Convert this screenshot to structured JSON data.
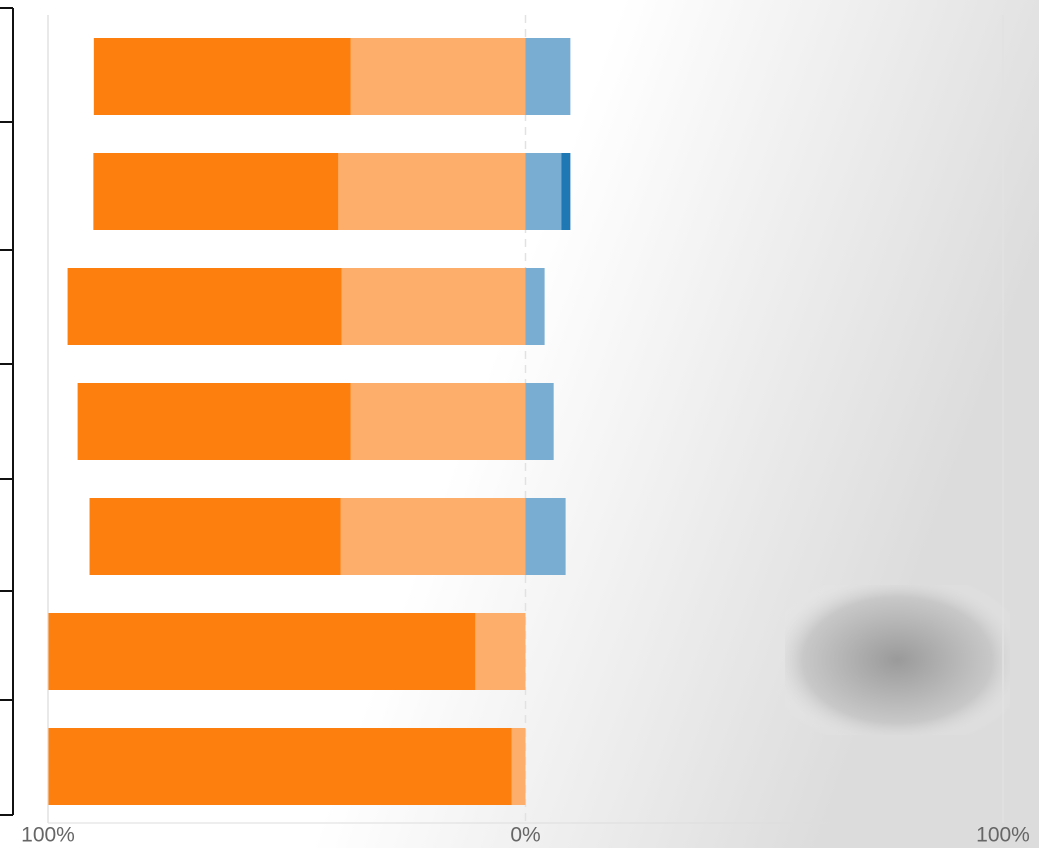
{
  "chart_data": {
    "type": "diverging-bar",
    "categories": [
      null,
      null,
      null,
      null,
      null,
      null,
      null
    ],
    "series": [
      {
        "color": "#fd7f0e",
        "values": [
          -53.8,
          -51.3,
          -57.4,
          -57.2,
          -52.6,
          -89.4,
          -97.0
        ]
      },
      {
        "color": "#feae6b",
        "values": [
          -36.6,
          -39.2,
          -38.5,
          -36.6,
          -38.7,
          -10.5,
          -2.9
        ]
      },
      {
        "color": "#79add2",
        "values": [
          9.4,
          7.5,
          4.0,
          5.9,
          8.4,
          0,
          0
        ]
      },
      {
        "color": "#1f77b4",
        "values": [
          0,
          1.9,
          0,
          0,
          0,
          0,
          0
        ]
      }
    ],
    "xlim": [
      -100,
      100
    ],
    "xticks": [
      {
        "value": -100,
        "label": "100%"
      },
      {
        "value": 0,
        "label": "0%"
      },
      {
        "value": 100,
        "label": "100%"
      }
    ],
    "grid": true
  }
}
